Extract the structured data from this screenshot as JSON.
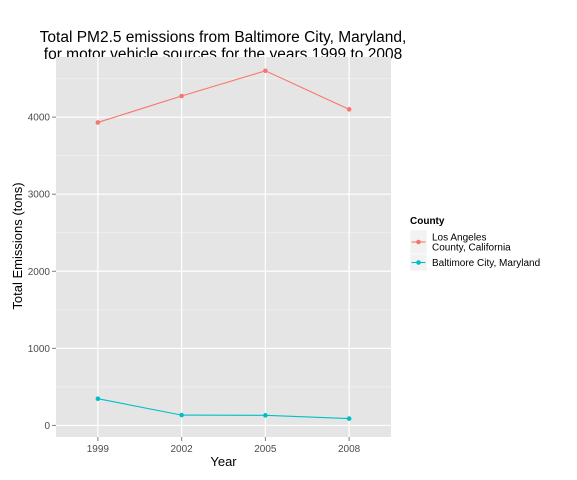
{
  "chart_data": {
    "type": "line",
    "title_lines": [
      "Total PM2.5 emissions from Baltimore City, Maryland,",
      "for motor vehicle sources for the years 1999 to 2008"
    ],
    "xlabel": "Year",
    "ylabel": "Total Emissions (tons)",
    "x": [
      1999,
      2002,
      2005,
      2008
    ],
    "x_tick_labels": [
      "1999",
      "2002",
      "2005",
      "2008"
    ],
    "xlim": [
      1997.5,
      2009.5
    ],
    "y_ticks": [
      0,
      1000,
      2000,
      3000,
      4000
    ],
    "y_tick_labels": [
      "0",
      "1000",
      "2000",
      "3000",
      "4000"
    ],
    "ylim": [
      -150,
      4780
    ],
    "grid": true,
    "legend": {
      "title": "County",
      "position": "right"
    },
    "series": [
      {
        "name": "Los Angeles County, California",
        "label_lines": [
          "Los Angeles",
          "County, California"
        ],
        "color": "#F8766D",
        "values": [
          3931,
          4274,
          4601,
          4101
        ]
      },
      {
        "name": "Baltimore City, Maryland",
        "label_lines": [
          "Baltimore City, Maryland"
        ],
        "color": "#00BFC4",
        "values": [
          347,
          134,
          131,
          89
        ]
      }
    ]
  }
}
